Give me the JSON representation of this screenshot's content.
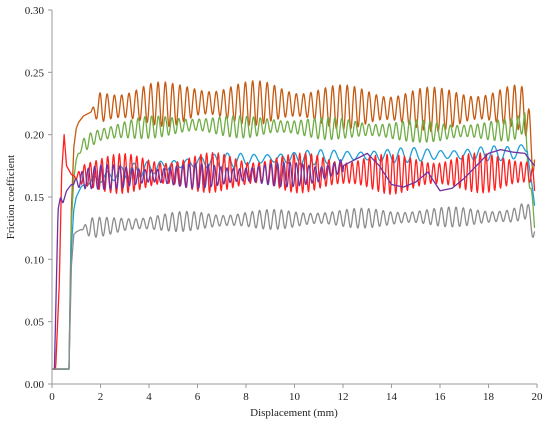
{
  "chart_data": {
    "type": "line",
    "xlabel": "Displacement (mm)",
    "ylabel": "Friction coefficient",
    "xlim": [
      0,
      20
    ],
    "ylim": [
      0,
      0.3
    ],
    "x_ticks": [
      0,
      2,
      4,
      6,
      8,
      10,
      12,
      14,
      16,
      18,
      20
    ],
    "y_ticks": [
      0.0,
      0.05,
      0.1,
      0.15,
      0.2,
      0.25,
      0.3
    ],
    "grid": false,
    "legend": "none",
    "series": [
      {
        "color": "#c55a11",
        "x": [
          0,
          0.3,
          0.55,
          0.7,
          0.8,
          0.9,
          1.0,
          1.1,
          1.3,
          1.6,
          2.0,
          3.0,
          4.0,
          5.0,
          6.0,
          7.0,
          8.0,
          9.0,
          10.0,
          11.0,
          12.0,
          13.0,
          14.0,
          15.0,
          16.0,
          17.0,
          18.0,
          19.0,
          19.5,
          19.7,
          19.9
        ],
        "y": [
          0.012,
          0.012,
          0.012,
          0.012,
          0.14,
          0.19,
          0.205,
          0.21,
          0.215,
          0.218,
          0.222,
          0.223,
          0.225,
          0.224,
          0.226,
          0.225,
          0.225,
          0.226,
          0.224,
          0.223,
          0.222,
          0.222,
          0.221,
          0.221,
          0.22,
          0.221,
          0.222,
          0.223,
          0.22,
          0.2,
          0.18
        ],
        "osc_amp": 0.018,
        "osc_period": 0.3,
        "osc_from": 1.6
      },
      {
        "color": "#70ad47",
        "x": [
          0,
          0.3,
          0.55,
          0.7,
          0.8,
          0.9,
          1.0,
          1.2,
          1.5,
          2.0,
          3.0,
          4.0,
          5.0,
          6.0,
          7.0,
          8.0,
          9.0,
          10.0,
          11.0,
          12.0,
          13.0,
          14.0,
          15.0,
          16.0,
          17.0,
          18.0,
          19.0,
          19.5,
          19.7,
          19.9
        ],
        "y": [
          0.012,
          0.012,
          0.012,
          0.012,
          0.13,
          0.165,
          0.18,
          0.19,
          0.195,
          0.2,
          0.204,
          0.206,
          0.207,
          0.208,
          0.207,
          0.206,
          0.207,
          0.206,
          0.205,
          0.205,
          0.204,
          0.203,
          0.203,
          0.202,
          0.203,
          0.203,
          0.204,
          0.21,
          0.16,
          0.13
        ],
        "osc_amp": 0.009,
        "osc_period": 0.28,
        "osc_from": 1.0
      },
      {
        "color": "#1f9fd8",
        "x": [
          0,
          0.4,
          0.7,
          0.8,
          0.9,
          1.0,
          1.2,
          1.5,
          2.0,
          3.0,
          4.0,
          5.0,
          6.0,
          7.0,
          8.0,
          9.0,
          10.0,
          11.0,
          12.0,
          13.0,
          14.0,
          15.0,
          16.0,
          17.0,
          18.0,
          19.0,
          19.6,
          19.9
        ],
        "y": [
          0.012,
          0.012,
          0.012,
          0.11,
          0.14,
          0.15,
          0.158,
          0.162,
          0.165,
          0.17,
          0.173,
          0.176,
          0.178,
          0.179,
          0.18,
          0.181,
          0.181,
          0.182,
          0.183,
          0.183,
          0.183,
          0.184,
          0.184,
          0.184,
          0.185,
          0.185,
          0.19,
          0.14
        ],
        "osc_amp": 0.006,
        "osc_period": 0.55,
        "osc_from": 1.2
      },
      {
        "color": "#ff2020",
        "x": [
          0,
          0.15,
          0.3,
          0.4,
          0.5,
          0.6,
          0.8,
          1.0,
          1.5,
          2.0,
          3.0,
          4.0,
          5.0,
          6.0,
          7.0,
          8.0,
          9.0,
          10.0,
          11.0,
          12.0,
          13.0,
          14.0,
          15.0,
          16.0,
          17.0,
          18.0,
          19.0,
          19.7,
          19.9
        ],
        "y": [
          0.012,
          0.012,
          0.08,
          0.17,
          0.2,
          0.175,
          0.168,
          0.166,
          0.168,
          0.168,
          0.169,
          0.169,
          0.169,
          0.169,
          0.17,
          0.169,
          0.17,
          0.169,
          0.17,
          0.169,
          0.17,
          0.168,
          0.169,
          0.169,
          0.17,
          0.169,
          0.17,
          0.17,
          0.16
        ],
        "osc_amp": 0.016,
        "osc_period": 0.24,
        "osc_from": 0.9
      },
      {
        "color": "#7030a0",
        "x": [
          0,
          0.1,
          0.25,
          0.35,
          0.45,
          0.6,
          0.8,
          1.0,
          1.5,
          2.0,
          3.0,
          4.0,
          5.0,
          6.0,
          7.0,
          8.0,
          9.0,
          10.0,
          11.0,
          12.0,
          12.5,
          13.0,
          13.5,
          14.0,
          14.5,
          15.0,
          15.5,
          16.0,
          16.5,
          17.0,
          17.5,
          18.0,
          18.5,
          19.0,
          19.5,
          19.9
        ],
        "y": [
          0.012,
          0.012,
          0.14,
          0.15,
          0.145,
          0.155,
          0.16,
          0.162,
          0.165,
          0.166,
          0.166,
          0.167,
          0.167,
          0.167,
          0.167,
          0.168,
          0.168,
          0.168,
          0.168,
          0.175,
          0.18,
          0.185,
          0.175,
          0.16,
          0.158,
          0.162,
          0.17,
          0.155,
          0.157,
          0.165,
          0.175,
          0.185,
          0.188,
          0.186,
          0.185,
          0.175
        ],
        "osc_amp": 0.01,
        "osc_period": 0.26,
        "osc_from": 0.8,
        "osc_to": 12.0
      },
      {
        "color": "#8c8c8c",
        "x": [
          0,
          0.3,
          0.6,
          0.7,
          0.8,
          0.9,
          1.0,
          1.2,
          1.5,
          2.0,
          3.0,
          4.0,
          5.0,
          6.0,
          7.0,
          8.0,
          9.0,
          10.0,
          11.0,
          12.0,
          13.0,
          14.0,
          15.0,
          16.0,
          17.0,
          18.0,
          19.0,
          19.6,
          19.9
        ],
        "y": [
          0.012,
          0.012,
          0.012,
          0.012,
          0.095,
          0.12,
          0.122,
          0.124,
          0.125,
          0.126,
          0.128,
          0.129,
          0.13,
          0.131,
          0.131,
          0.132,
          0.132,
          0.132,
          0.133,
          0.133,
          0.133,
          0.133,
          0.134,
          0.134,
          0.134,
          0.134,
          0.135,
          0.14,
          0.12
        ],
        "osc_amp": 0.008,
        "osc_period": 0.3,
        "osc_from": 1.2
      }
    ]
  }
}
